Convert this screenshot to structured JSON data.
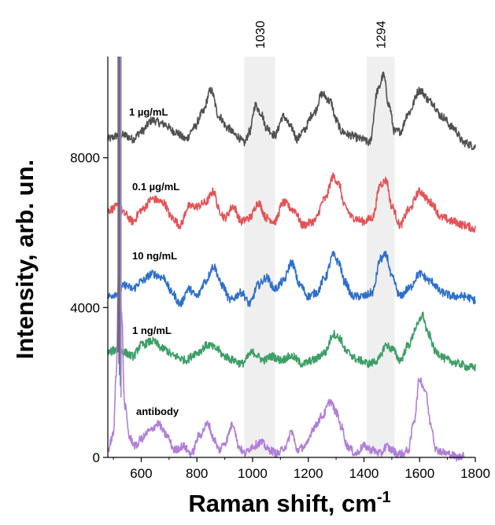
{
  "chart_data": {
    "type": "line",
    "xlabel": "Raman shift, cm",
    "xlabel_sup": "-1",
    "ylabel": "Intensity, arb. un.",
    "xlim": [
      480,
      1800
    ],
    "ylim": [
      0,
      10700
    ],
    "x_ticks": [
      600,
      800,
      1000,
      1200,
      1400,
      1600,
      1800
    ],
    "y_ticks": [
      0,
      4000,
      8000
    ],
    "bands": [
      {
        "label": "1030",
        "from": 970,
        "to": 1080
      },
      {
        "label": "1294",
        "from": 1410,
        "to": 1510
      }
    ],
    "series": [
      {
        "name": "1 µg/mL",
        "color": "#505050",
        "x": [
          480,
          520,
          540,
          570,
          600,
          640,
          680,
          720,
          760,
          790,
          820,
          850,
          880,
          910,
          940,
          970,
          990,
          1010,
          1030,
          1050,
          1080,
          1110,
          1140,
          1160,
          1180,
          1220,
          1250,
          1280,
          1300,
          1320,
          1350,
          1390,
          1420,
          1450,
          1470,
          1490,
          1510,
          1530,
          1560,
          1600,
          1640,
          1680,
          1720,
          1760,
          1800
        ],
        "y": [
          8500,
          8600,
          8600,
          8500,
          8700,
          9000,
          8900,
          8700,
          8500,
          8800,
          9200,
          9800,
          9100,
          8800,
          8600,
          8400,
          8700,
          9400,
          9200,
          8800,
          8600,
          9100,
          8800,
          8500,
          8700,
          9200,
          9700,
          9500,
          9000,
          8700,
          8600,
          8500,
          8400,
          9800,
          10200,
          9400,
          8700,
          8700,
          9200,
          9800,
          9500,
          9100,
          8800,
          8400,
          8300
        ]
      },
      {
        "name": "0.1 µg/mL",
        "color": "#e35256",
        "x": [
          480,
          520,
          540,
          570,
          600,
          640,
          680,
          710,
          740,
          770,
          800,
          830,
          860,
          880,
          900,
          930,
          960,
          990,
          1020,
          1050,
          1080,
          1110,
          1150,
          1180,
          1220,
          1260,
          1290,
          1310,
          1330,
          1360,
          1400,
          1430,
          1460,
          1480,
          1500,
          1530,
          1560,
          1600,
          1640,
          1680,
          1720,
          1760,
          1800
        ],
        "y": [
          6600,
          6700,
          6500,
          6300,
          6600,
          6900,
          6800,
          6400,
          6200,
          6700,
          6700,
          6800,
          7100,
          6600,
          6400,
          6700,
          6300,
          6400,
          6800,
          6400,
          6300,
          6800,
          6600,
          6200,
          6300,
          6900,
          7500,
          7300,
          6700,
          6400,
          6300,
          6400,
          7300,
          7400,
          6700,
          6200,
          6600,
          7100,
          6800,
          6400,
          6300,
          6200,
          6100
        ]
      },
      {
        "name": "10 ng/mL",
        "color": "#2d6fcc",
        "x": [
          480,
          520,
          540,
          570,
          600,
          640,
          680,
          710,
          740,
          770,
          800,
          830,
          860,
          890,
          920,
          960,
          990,
          1020,
          1050,
          1080,
          1110,
          1140,
          1170,
          1200,
          1230,
          1260,
          1290,
          1310,
          1330,
          1360,
          1400,
          1430,
          1460,
          1480,
          1500,
          1530,
          1560,
          1600,
          1640,
          1680,
          1720,
          1760,
          1800
        ],
        "y": [
          4300,
          4400,
          4600,
          4500,
          4700,
          4900,
          4800,
          4400,
          4100,
          4500,
          4300,
          4700,
          5100,
          4600,
          4200,
          4400,
          4100,
          4600,
          4800,
          4500,
          4700,
          5200,
          4600,
          4300,
          4400,
          4800,
          5400,
          5200,
          4700,
          4300,
          4300,
          4400,
          5300,
          5400,
          4800,
          4300,
          4500,
          4900,
          4700,
          4400,
          4300,
          4300,
          4200
        ]
      },
      {
        "name": "1 ng/mL",
        "color": "#3c9f66",
        "x": [
          480,
          520,
          540,
          570,
          600,
          640,
          680,
          720,
          760,
          800,
          840,
          870,
          900,
          930,
          960,
          1000,
          1040,
          1070,
          1100,
          1140,
          1180,
          1220,
          1260,
          1290,
          1310,
          1340,
          1380,
          1420,
          1450,
          1480,
          1500,
          1530,
          1560,
          1590,
          1610,
          1630,
          1660,
          1700,
          1740,
          1780,
          1800
        ],
        "y": [
          2800,
          2900,
          2800,
          2700,
          3000,
          3100,
          2900,
          2700,
          2600,
          2800,
          3000,
          2900,
          2700,
          2600,
          2500,
          2800,
          2600,
          2700,
          2600,
          2700,
          2500,
          2600,
          2800,
          3300,
          3200,
          2800,
          2600,
          2500,
          2600,
          3000,
          2900,
          2600,
          3000,
          3500,
          3800,
          3300,
          2800,
          2600,
          2500,
          2400,
          2400
        ]
      },
      {
        "name": "antibody",
        "color": "#b07ed8",
        "x": [
          480,
          500,
          510,
          520,
          530,
          540,
          560,
          580,
          600,
          630,
          660,
          690,
          720,
          750,
          780,
          810,
          840,
          860,
          880,
          900,
          930,
          950,
          970,
          1000,
          1030,
          1060,
          1090,
          1120,
          1140,
          1160,
          1190,
          1220,
          1250,
          1280,
          1300,
          1320,
          1340,
          1370,
          1400,
          1430,
          1460,
          1480,
          1500,
          1520,
          1540,
          1560,
          1580,
          1600,
          1620,
          1640,
          1660,
          1700,
          1740,
          1760
        ],
        "y": [
          200,
          600,
          2200,
          5500,
          3800,
          1400,
          500,
          300,
          500,
          700,
          900,
          600,
          200,
          300,
          100,
          600,
          900,
          500,
          200,
          400,
          900,
          300,
          100,
          300,
          400,
          200,
          100,
          300,
          700,
          200,
          300,
          800,
          1100,
          1500,
          1200,
          800,
          300,
          100,
          300,
          200,
          100,
          300,
          200,
          100,
          100,
          200,
          1000,
          2100,
          1800,
          900,
          200,
          100,
          0,
          100
        ]
      }
    ],
    "spike": {
      "x": 523,
      "colors": [
        "#505050",
        "#e35256",
        "#2d6fcc",
        "#3c9f66",
        "#b07ed8"
      ]
    }
  }
}
